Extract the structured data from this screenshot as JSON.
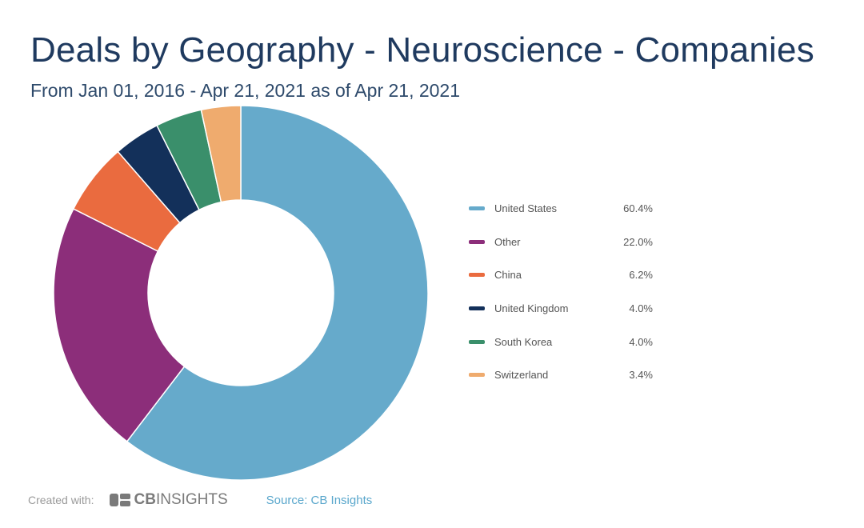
{
  "chart_data": {
    "type": "pie",
    "title": "Deals by Geography - Neuroscience - Companies",
    "subtitle": "From Jan 01, 2016 - Apr 21, 2021 as of Apr 21, 2021",
    "donut": true,
    "categories": [
      "United States",
      "Other",
      "China",
      "United Kingdom",
      "South Korea",
      "Switzerland"
    ],
    "values": [
      60.4,
      22.0,
      6.2,
      4.0,
      4.0,
      3.4
    ],
    "value_labels": [
      "60.4%",
      "22.0%",
      "6.2%",
      "4.0%",
      "4.0%",
      "3.4%"
    ],
    "colors": [
      "#66aacb",
      "#8c2e7a",
      "#ea6b3f",
      "#13305a",
      "#3a8f6b",
      "#efab6e"
    ],
    "legend_position": "right"
  },
  "footer": {
    "created_with": "Created with:",
    "logo_text": "CBINSIGHTS",
    "logo_bold": "CB",
    "logo_rest": "INSIGHTS",
    "source": "Source: CB Insights"
  }
}
